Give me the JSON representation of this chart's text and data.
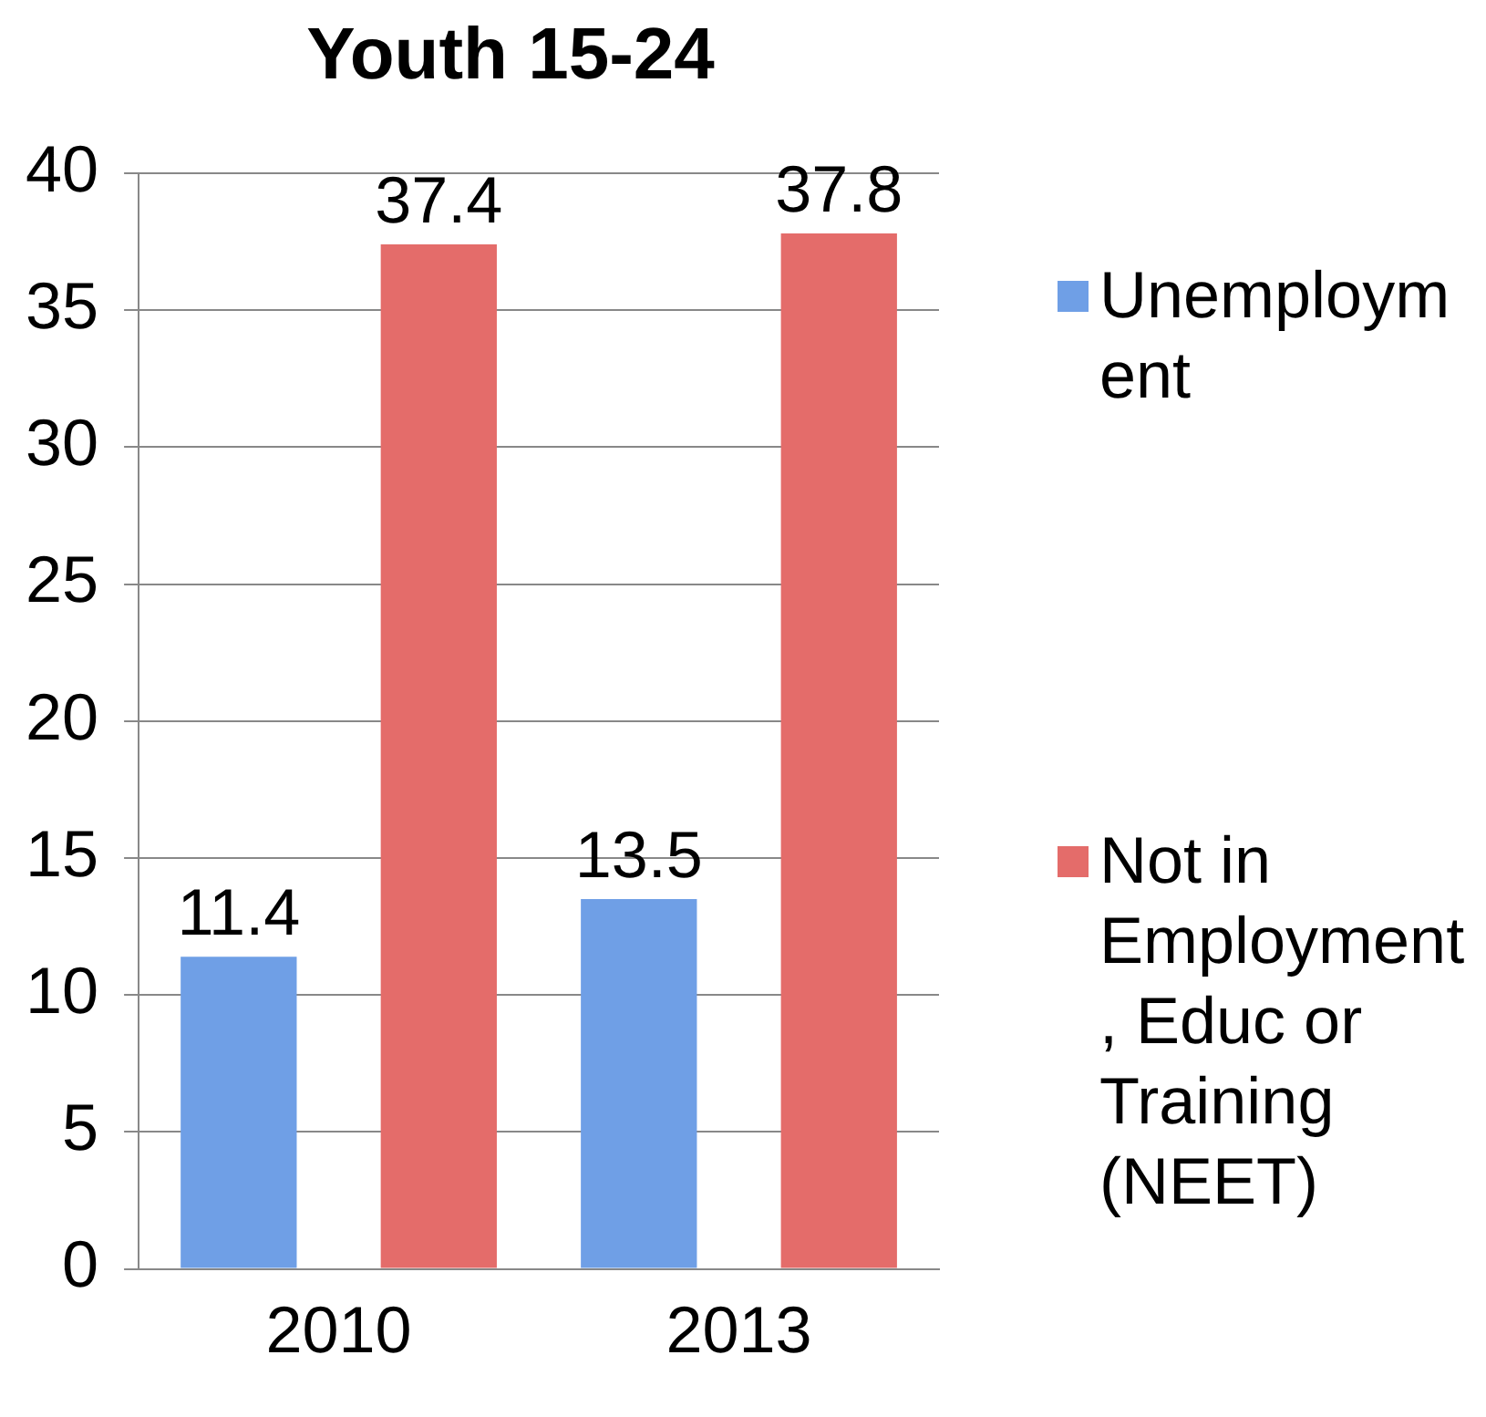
{
  "chart_data": {
    "type": "bar",
    "title": "Youth 15-24",
    "categories": [
      "2010",
      "2013"
    ],
    "series": [
      {
        "name": "Unemployment",
        "color": "#6f9fe6",
        "values": [
          11.4,
          13.5
        ]
      },
      {
        "name": "Not in Employment, Educ or Training (NEET)",
        "color": "#e46c6a",
        "values": [
          37.4,
          37.8
        ]
      }
    ],
    "ylim": [
      0,
      40
    ],
    "yticks": [
      0,
      5,
      10,
      15,
      20,
      25,
      30,
      35,
      40
    ],
    "grid": "y",
    "legend": "right",
    "data_labels": true
  }
}
